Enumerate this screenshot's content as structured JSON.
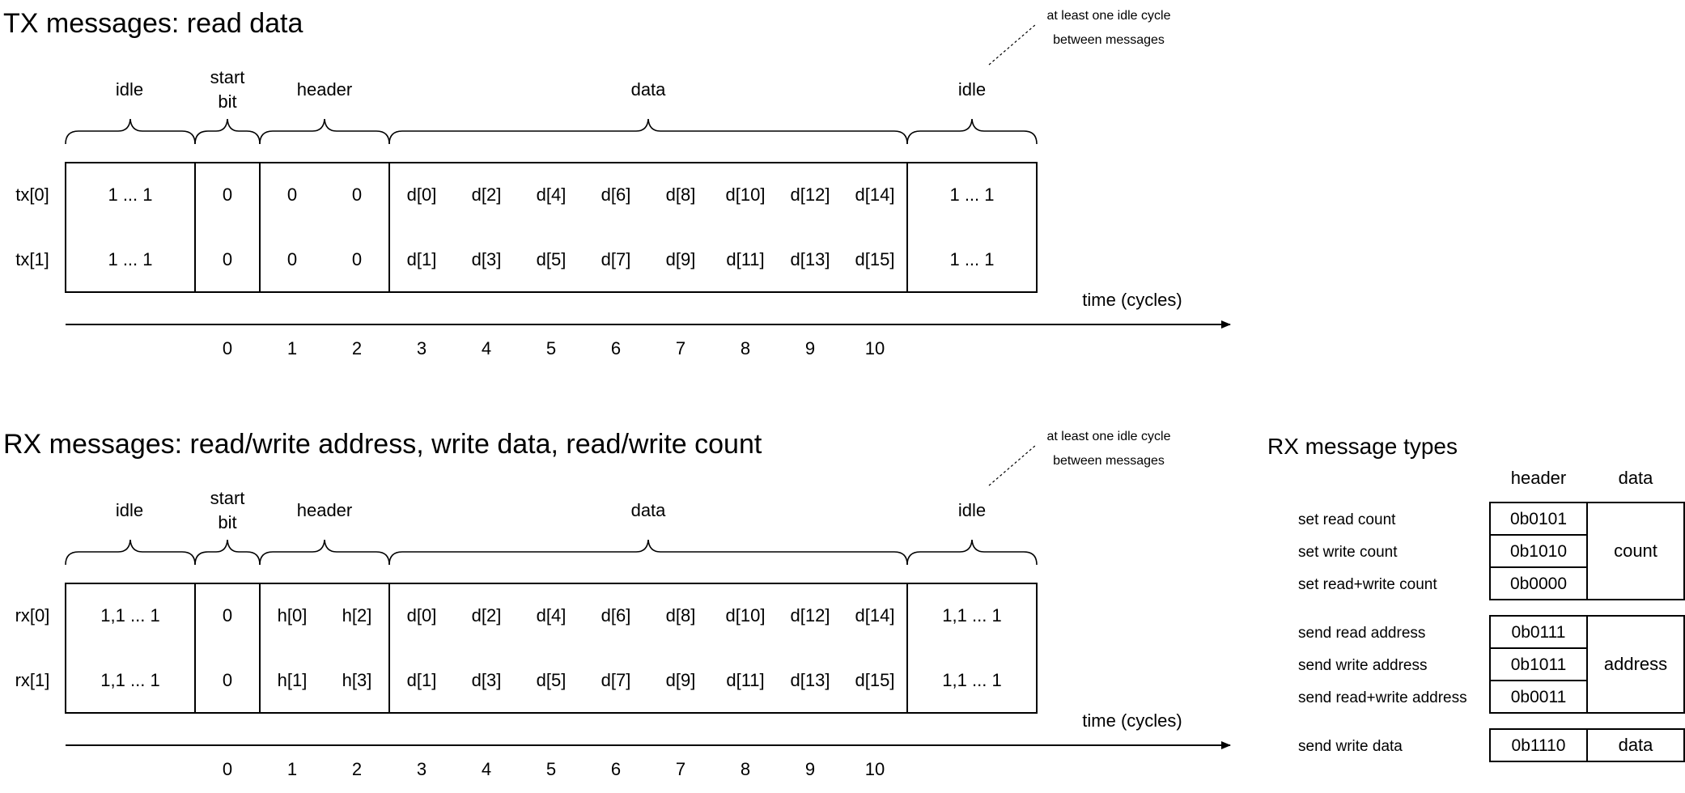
{
  "tx": {
    "title": "TX messages: read data",
    "note_line1": "at least one idle cycle",
    "note_line2": "between messages",
    "braces": {
      "idle_left": "idle",
      "start_line1": "start",
      "start_line2": "bit",
      "header": "header",
      "data": "data",
      "idle_right": "idle"
    },
    "rows": [
      {
        "label": "tx[0]",
        "idle_left": "1 ... 1",
        "start": "0",
        "header": [
          "0",
          "0"
        ],
        "data": [
          "d[0]",
          "d[2]",
          "d[4]",
          "d[6]",
          "d[8]",
          "d[10]",
          "d[12]",
          "d[14]"
        ],
        "idle_right": "1 ... 1"
      },
      {
        "label": "tx[1]",
        "idle_left": "1 ... 1",
        "start": "0",
        "header": [
          "0",
          "0"
        ],
        "data": [
          "d[1]",
          "d[3]",
          "d[5]",
          "d[7]",
          "d[9]",
          "d[11]",
          "d[13]",
          "d[15]"
        ],
        "idle_right": "1 ... 1"
      }
    ],
    "axis_label": "time (cycles)",
    "ticks": [
      "0",
      "1",
      "2",
      "3",
      "4",
      "5",
      "6",
      "7",
      "8",
      "9",
      "10"
    ]
  },
  "rx": {
    "title": "RX messages: read/write address, write data, read/write count",
    "note_line1": "at least one idle cycle",
    "note_line2": "between messages",
    "braces": {
      "idle_left": "idle",
      "start_line1": "start",
      "start_line2": "bit",
      "header": "header",
      "data": "data",
      "idle_right": "idle"
    },
    "rows": [
      {
        "label": "rx[0]",
        "idle_left": "1,1 ... 1",
        "start": "0",
        "header": [
          "h[0]",
          "h[2]"
        ],
        "data": [
          "d[0]",
          "d[2]",
          "d[4]",
          "d[6]",
          "d[8]",
          "d[10]",
          "d[12]",
          "d[14]"
        ],
        "idle_right": "1,1 ... 1"
      },
      {
        "label": "rx[1]",
        "idle_left": "1,1 ... 1",
        "start": "0",
        "header": [
          "h[1]",
          "h[3]"
        ],
        "data": [
          "d[1]",
          "d[3]",
          "d[5]",
          "d[7]",
          "d[9]",
          "d[11]",
          "d[13]",
          "d[15]"
        ],
        "idle_right": "1,1 ... 1"
      }
    ],
    "axis_label": "time (cycles)",
    "ticks": [
      "0",
      "1",
      "2",
      "3",
      "4",
      "5",
      "6",
      "7",
      "8",
      "9",
      "10"
    ]
  },
  "rx_types": {
    "title": "RX message types",
    "col_header": "header",
    "col_data": "data",
    "groups": [
      {
        "data_label": "count",
        "items": [
          {
            "name": "set read count",
            "header": "0b0101"
          },
          {
            "name": "set write count",
            "header": "0b1010"
          },
          {
            "name": "set read+write count",
            "header": "0b0000"
          }
        ]
      },
      {
        "data_label": "address",
        "items": [
          {
            "name": "send read address",
            "header": "0b0111"
          },
          {
            "name": "send write address",
            "header": "0b1011"
          },
          {
            "name": "send read+write address",
            "header": "0b0011"
          }
        ]
      },
      {
        "data_label": "data",
        "items": [
          {
            "name": "send write data",
            "header": "0b1110"
          }
        ]
      }
    ]
  }
}
